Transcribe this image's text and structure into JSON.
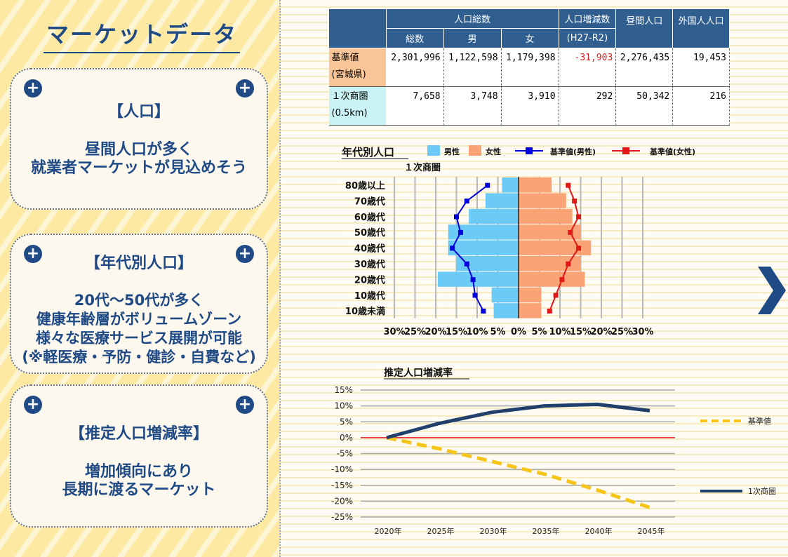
{
  "panel": {
    "title": "マーケットデータ",
    "cards": [
      {
        "title": "【人口】",
        "body": [
          "昼間人口が多く",
          "就業者マーケットが見込めそう"
        ]
      },
      {
        "title": "【年代別人口】",
        "body": [
          "20代～50代が多く",
          "健康年齢層がボリュームゾーン",
          "様々な医療サービス展開が可能",
          "(※軽医療・予防・健診・自費など)"
        ]
      },
      {
        "title": "【推定人口増減率】",
        "body": [
          "増加傾向にあり",
          "長期に渡るマーケット"
        ]
      }
    ],
    "plus_icon": "+"
  },
  "table": {
    "headers": {
      "total_group": "人口総数",
      "total": "総数",
      "male": "男",
      "female": "女",
      "change": "人口増減数",
      "change_period": "(H27-R2)",
      "daytime": "昼間人口",
      "foreign": "外国人人口"
    },
    "rows": [
      {
        "label1": "基準値",
        "label2": "(宮城県)",
        "total": "2,301,996",
        "male": "1,122,598",
        "female": "1,179,398",
        "change": "-31,903",
        "daytime": "2,276,435",
        "foreign": "19,453"
      },
      {
        "label1": "１次商圏",
        "label2": "(0.5km)",
        "total": "7,658",
        "male": "3,748",
        "female": "3,910",
        "change": "292",
        "daytime": "50,342",
        "foreign": "216"
      }
    ]
  },
  "colors": {
    "header_blue": "#2f5e8f",
    "male": "#6ccaf6",
    "female": "#f9a377",
    "base_male": "#0000dd",
    "base_female": "#e01818",
    "trend_area": "#203f6b",
    "trend_base": "#f5c518",
    "zero_line": "#e02020",
    "title_blue": "#1f4a86"
  },
  "chart_data": [
    {
      "type": "bar",
      "orientation": "horizontal-pyramid",
      "title": "年代別人口",
      "subtitle": "１次商圏",
      "legend": [
        "男性",
        "女性",
        "基準値(男性)",
        "基準値(女性)"
      ],
      "categories": [
        "80歳以上",
        "70歳代",
        "60歳代",
        "50歳代",
        "40歳代",
        "30歳代",
        "20歳代",
        "10歳代",
        "10歳未満"
      ],
      "series": [
        {
          "name": "男性",
          "values": [
            4.0,
            8.0,
            12.0,
            17.0,
            17.0,
            15.0,
            19.5,
            6.5,
            6.0
          ]
        },
        {
          "name": "女性",
          "values": [
            8.0,
            11.5,
            13.0,
            15.0,
            17.5,
            15.0,
            16.0,
            5.5,
            5.5
          ]
        },
        {
          "name": "基準値(男性)",
          "values": [
            7.5,
            12.5,
            15.0,
            14.0,
            16.0,
            12.5,
            11.0,
            10.5,
            8.5
          ]
        },
        {
          "name": "基準値(女性)",
          "values": [
            12.0,
            13.5,
            14.5,
            12.5,
            14.5,
            12.0,
            10.5,
            9.0,
            7.5
          ]
        }
      ],
      "x_ticks": [
        "30%",
        "25%",
        "20%",
        "15%",
        "10%",
        "5%",
        "0%",
        "5%",
        "10%",
        "15%",
        "20%",
        "25%",
        "30%"
      ],
      "xlim": [
        -30,
        30
      ]
    },
    {
      "type": "line",
      "title": "推定人口増減率",
      "categories": [
        "2020年",
        "2025年",
        "2030年",
        "2035年",
        "2040年",
        "2045年"
      ],
      "y_ticks": [
        "15%",
        "10%",
        "5%",
        "0%",
        "-5%",
        "-10%",
        "-15%",
        "-20%",
        "-25%"
      ],
      "ylim": [
        -25,
        15
      ],
      "series": [
        {
          "name": "基準値",
          "values": [
            0.0,
            -3.5,
            -7.5,
            -11.5,
            -16.5,
            -22.0
          ],
          "style": "dashed"
        },
        {
          "name": "1次商圏",
          "values": [
            0.0,
            4.5,
            8.0,
            10.0,
            10.5,
            8.5
          ],
          "style": "solid"
        }
      ]
    }
  ]
}
